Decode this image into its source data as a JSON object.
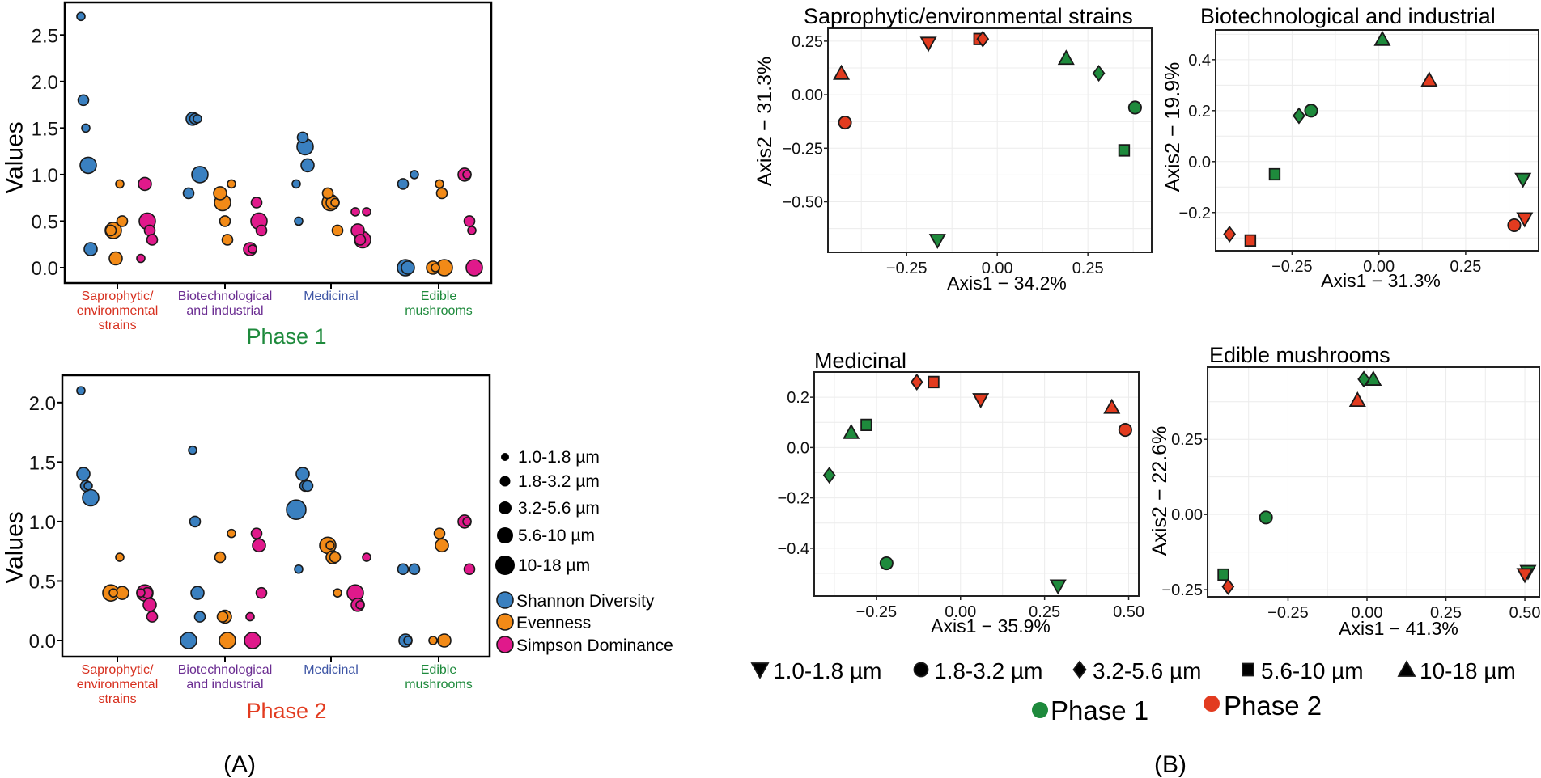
{
  "panel_labels": {
    "a": "(A)",
    "b": "(B)"
  },
  "colors": {
    "shannon": "#3a80c0",
    "evenness": "#f28a17",
    "simpson": "#e0198b",
    "phase1": "#1e8a3c",
    "phase2": "#e23b1f",
    "cat_colors": [
      "#d7301f",
      "#6a2c91",
      "#3d55a5",
      "#1e8a3c"
    ]
  },
  "size_classes": [
    "1.0-1.8 µm",
    "1.8-3.2 µm",
    "3.2-5.6 µm",
    "5.6-10 µm",
    "10-18 µm"
  ],
  "phases": [
    "Phase 1",
    "Phase 2"
  ],
  "categories": [
    [
      "Saprophytic/",
      "environmental",
      "strains"
    ],
    [
      "Biotechnological",
      "and industrial"
    ],
    [
      "Medicinal"
    ],
    [
      "Edible",
      "mushrooms"
    ]
  ],
  "chart_data": [
    {
      "type": "scatter",
      "title": "Phase 1",
      "ylabel": "Values",
      "ylim": [
        -0.165,
        2.85
      ],
      "yticks": [
        "0.0",
        "0.5",
        "1.0",
        "1.5",
        "2.0",
        "2.5"
      ],
      "series": [
        {
          "name": "Shannon Diversity",
          "points": [
            [
              [
                2.7,
                0
              ],
              [
                1.8,
                1
              ],
              [
                1.5,
                0
              ],
              [
                1.1,
                3
              ],
              [
                0.2,
                2
              ]
            ],
            [
              [
                1.6,
                2
              ],
              [
                1.6,
                1
              ],
              [
                1.6,
                0
              ],
              [
                1.0,
                3
              ],
              [
                0.8,
                1
              ]
            ],
            [
              [
                1.4,
                1
              ],
              [
                1.3,
                3
              ],
              [
                1.1,
                2
              ],
              [
                0.9,
                0
              ],
              [
                0.5,
                0
              ]
            ],
            [
              [
                1.0,
                0
              ],
              [
                0.9,
                1
              ],
              [
                0.0,
                3
              ],
              [
                0.0,
                2
              ]
            ]
          ]
        },
        {
          "name": "Evenness",
          "points": [
            [
              [
                0.9,
                0
              ],
              [
                0.5,
                1
              ],
              [
                0.4,
                1
              ],
              [
                0.4,
                3
              ],
              [
                0.1,
                2
              ]
            ],
            [
              [
                0.9,
                0
              ],
              [
                0.8,
                2
              ],
              [
                0.7,
                3
              ],
              [
                0.5,
                1
              ],
              [
                0.3,
                1
              ]
            ],
            [
              [
                0.8,
                1
              ],
              [
                0.7,
                3
              ],
              [
                0.7,
                2
              ],
              [
                0.7,
                0
              ],
              [
                0.4,
                1
              ]
            ],
            [
              [
                0.9,
                0
              ],
              [
                0.8,
                1
              ],
              [
                0.0,
                3
              ],
              [
                0.0,
                2
              ],
              [
                0.0,
                0
              ]
            ]
          ]
        },
        {
          "name": "Simpson Dominance",
          "points": [
            [
              [
                0.9,
                2
              ],
              [
                0.5,
                3
              ],
              [
                0.4,
                1
              ],
              [
                0.3,
                1
              ],
              [
                0.1,
                0
              ]
            ],
            [
              [
                0.7,
                1
              ],
              [
                0.5,
                3
              ],
              [
                0.4,
                1
              ],
              [
                0.2,
                2
              ],
              [
                0.2,
                0
              ]
            ],
            [
              [
                0.6,
                0
              ],
              [
                0.6,
                0
              ],
              [
                0.4,
                2
              ],
              [
                0.3,
                1
              ],
              [
                0.3,
                3
              ]
            ],
            [
              [
                1.0,
                2
              ],
              [
                1.0,
                0
              ],
              [
                0.5,
                1
              ],
              [
                0.4,
                0
              ],
              [
                0.0,
                3
              ]
            ]
          ]
        }
      ]
    },
    {
      "type": "scatter",
      "title": "Phase 2",
      "ylabel": "Values",
      "ylim": [
        -0.136,
        2.23
      ],
      "yticks": [
        "0.0",
        "0.5",
        "1.0",
        "1.5",
        "2.0"
      ],
      "series": [
        {
          "name": "Shannon Diversity",
          "points": [
            [
              [
                2.1,
                0
              ],
              [
                1.4,
                2
              ],
              [
                1.3,
                1
              ],
              [
                1.3,
                0
              ],
              [
                1.2,
                3
              ]
            ],
            [
              [
                1.6,
                0
              ],
              [
                1.0,
                1
              ],
              [
                0.4,
                2
              ],
              [
                0.2,
                1
              ],
              [
                0.0,
                3
              ]
            ],
            [
              [
                1.4,
                2
              ],
              [
                1.3,
                1
              ],
              [
                1.3,
                1
              ],
              [
                1.1,
                4
              ],
              [
                0.6,
                0
              ]
            ],
            [
              [
                0.6,
                1
              ],
              [
                0.6,
                1
              ],
              [
                0.0,
                2
              ],
              [
                0.0,
                0
              ]
            ]
          ]
        },
        {
          "name": "Evenness",
          "points": [
            [
              [
                0.7,
                0
              ],
              [
                0.4,
                2
              ],
              [
                0.4,
                3
              ],
              [
                0.4,
                0
              ]
            ],
            [
              [
                0.9,
                0
              ],
              [
                0.7,
                1
              ],
              [
                0.2,
                1
              ],
              [
                0.2,
                2
              ],
              [
                0.0,
                3
              ]
            ],
            [
              [
                0.8,
                3
              ],
              [
                0.8,
                0
              ],
              [
                0.7,
                2
              ],
              [
                0.7,
                1
              ],
              [
                0.4,
                0
              ]
            ],
            [
              [
                0.9,
                1
              ],
              [
                0.8,
                2
              ],
              [
                0.0,
                2
              ],
              [
                0.0,
                0
              ]
            ]
          ]
        },
        {
          "name": "Simpson Dominance",
          "points": [
            [
              [
                0.4,
                3
              ],
              [
                0.4,
                1
              ],
              [
                0.3,
                2
              ],
              [
                0.2,
                1
              ],
              [
                0.4,
                0
              ]
            ],
            [
              [
                0.9,
                1
              ],
              [
                0.8,
                2
              ],
              [
                0.4,
                1
              ],
              [
                0.2,
                0
              ],
              [
                0.0,
                3
              ]
            ],
            [
              [
                0.7,
                0
              ],
              [
                0.4,
                3
              ],
              [
                0.3,
                2
              ],
              [
                0.3,
                0
              ]
            ],
            [
              [
                1.0,
                2
              ],
              [
                1.0,
                0
              ],
              [
                0.6,
                1
              ]
            ]
          ]
        }
      ]
    },
    {
      "type": "scatter",
      "title": "Saprophytic/environmental strains",
      "xlabel": "Axis1 − 34.2%",
      "ylabel": "Axis2 − 31.3%",
      "xlim": [
        -0.467,
        0.426
      ],
      "ylim": [
        -0.736,
        0.31
      ],
      "xticks": [
        "−0.25",
        "0.00",
        "0.25"
      ],
      "yticks": [
        "0.25",
        "0.00",
        "−0.25",
        "−0.50"
      ],
      "points": [
        [
          2,
          4,
          -0.43,
          0.1
        ],
        [
          2,
          1,
          -0.42,
          -0.13
        ],
        [
          2,
          0,
          -0.19,
          0.24
        ],
        [
          2,
          3,
          -0.05,
          0.26
        ],
        [
          2,
          2,
          -0.04,
          0.26
        ],
        [
          1,
          4,
          0.19,
          0.17
        ],
        [
          1,
          2,
          0.28,
          0.1
        ],
        [
          1,
          1,
          0.38,
          -0.06
        ],
        [
          1,
          3,
          0.35,
          -0.26
        ],
        [
          1,
          0,
          -0.165,
          -0.68
        ]
      ]
    },
    {
      "type": "scatter",
      "title": "Biotechnological and industrial",
      "xlabel": "Axis1 − 31.3%",
      "ylabel": "Axis2 − 19.9%",
      "xlim": [
        -0.47,
        0.46
      ],
      "ylim": [
        -0.35,
        0.517
      ],
      "xticks": [
        "−0.25",
        "0.00",
        "0.25"
      ],
      "yticks": [
        "0.4",
        "0.2",
        "0.0",
        "−0.2"
      ],
      "points": [
        [
          1,
          4,
          0.01,
          0.48
        ],
        [
          2,
          4,
          0.145,
          0.32
        ],
        [
          1,
          1,
          -0.195,
          0.2
        ],
        [
          1,
          2,
          -0.23,
          0.18
        ],
        [
          1,
          3,
          -0.3,
          -0.05
        ],
        [
          1,
          0,
          0.415,
          -0.07
        ],
        [
          2,
          0,
          0.42,
          -0.225
        ],
        [
          2,
          1,
          0.39,
          -0.25
        ],
        [
          2,
          2,
          -0.43,
          -0.285
        ],
        [
          2,
          3,
          -0.37,
          -0.31
        ]
      ]
    },
    {
      "type": "scatter",
      "title": "Medicinal",
      "xlabel": "Axis1 − 35.9%",
      "ylabel": "",
      "xlim": [
        -0.435,
        0.53
      ],
      "ylim": [
        -0.59,
        0.3
      ],
      "xticks": [
        "−0.25",
        "0.00",
        "0.25",
        "0.50"
      ],
      "yticks": [
        "0.2",
        "0.0",
        "−0.2",
        "−0.4"
      ],
      "points": [
        [
          1,
          4,
          -0.325,
          0.06
        ],
        [
          1,
          3,
          -0.28,
          0.09
        ],
        [
          1,
          2,
          -0.39,
          -0.11
        ],
        [
          1,
          1,
          -0.22,
          -0.46
        ],
        [
          1,
          0,
          0.29,
          -0.55
        ],
        [
          2,
          0,
          0.06,
          0.19
        ],
        [
          2,
          4,
          0.45,
          0.16
        ],
        [
          2,
          1,
          0.49,
          0.07
        ],
        [
          2,
          2,
          -0.13,
          0.26
        ],
        [
          2,
          3,
          -0.08,
          0.26
        ]
      ]
    },
    {
      "type": "scatter",
      "title": "Edible mushrooms",
      "xlabel": "Axis1 − 41.3%",
      "ylabel": "Axis2 − 22.6%",
      "xlim": [
        -0.505,
        0.546
      ],
      "ylim": [
        -0.274,
        0.49
      ],
      "xticks": [
        "−0.25",
        "0.00",
        "0.25",
        "0.50"
      ],
      "yticks": [
        "0.25",
        "0.00",
        "−0.25"
      ],
      "points": [
        [
          2,
          4,
          -0.03,
          0.38
        ],
        [
          1,
          2,
          -0.01,
          0.45
        ],
        [
          1,
          4,
          0.02,
          0.45
        ],
        [
          1,
          1,
          -0.32,
          -0.01
        ],
        [
          1,
          3,
          -0.455,
          -0.2
        ],
        [
          2,
          2,
          -0.44,
          -0.24
        ],
        [
          1,
          0,
          0.51,
          -0.19
        ],
        [
          2,
          0,
          0.5,
          -0.2
        ]
      ]
    }
  ]
}
